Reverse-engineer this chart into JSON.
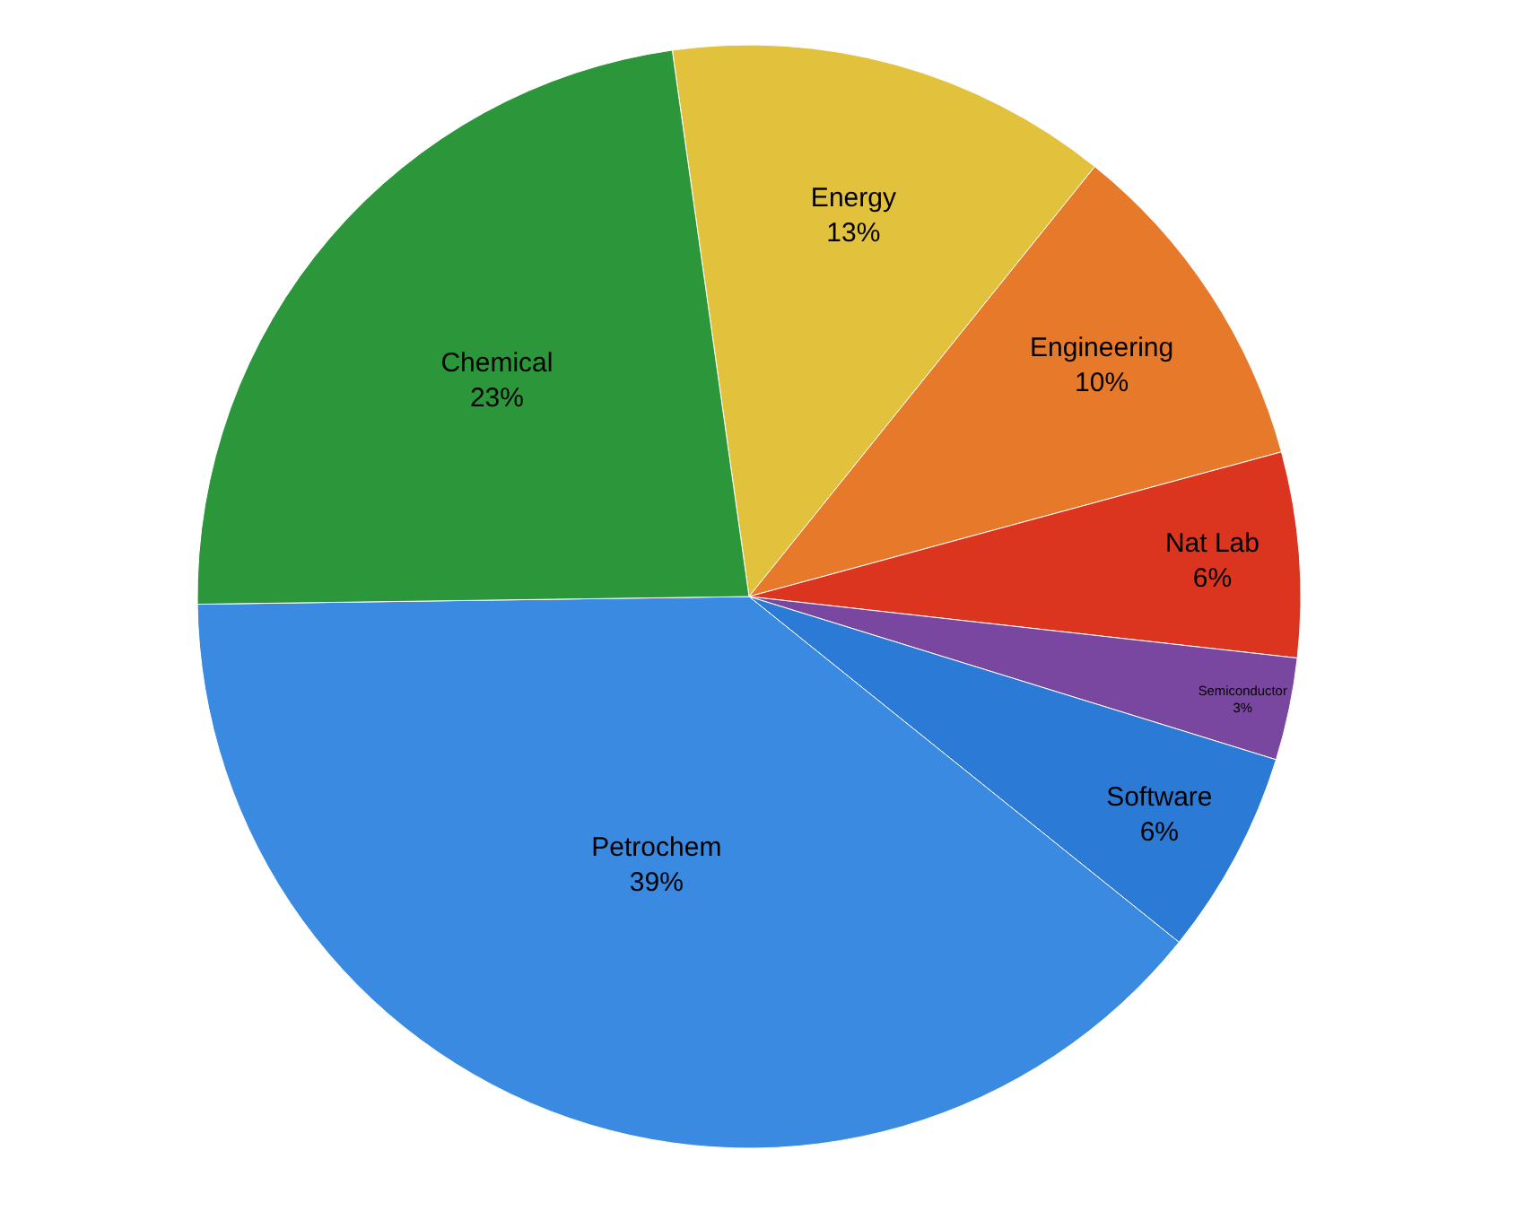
{
  "chart_data": {
    "type": "pie",
    "categories": [
      "Energy",
      "Engineering",
      "Nat Lab",
      "Semiconductor",
      "Software",
      "Petrochem",
      "Chemical"
    ],
    "values": [
      13,
      10,
      6,
      3,
      6,
      39,
      23
    ],
    "value_labels": [
      "13%",
      "10%",
      "6%",
      "3%",
      "6%",
      "39%",
      "23%"
    ],
    "colors": [
      "#e2c23c",
      "#e77a2a",
      "#db3520",
      "#7a47a0",
      "#2a7ad6",
      "#3a8ae2",
      "#2c963a"
    ],
    "legend": false
  }
}
